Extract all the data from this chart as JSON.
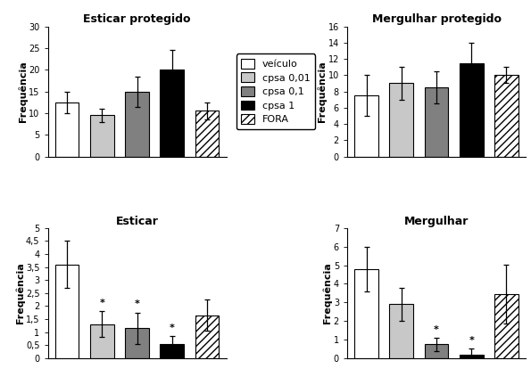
{
  "titles": [
    "Esticar protegido",
    "Mergulhar protegido",
    "Esticar",
    "Mergulhar"
  ],
  "ylabel": "Frequência",
  "bar_values": {
    "Esticar protegido": [
      12.5,
      9.5,
      15.0,
      20.0,
      10.5
    ],
    "Mergulhar protegido": [
      7.5,
      9.0,
      8.5,
      11.5,
      10.0
    ],
    "Esticar": [
      3.6,
      1.3,
      1.15,
      0.55,
      1.65
    ],
    "Mergulhar": [
      4.8,
      2.9,
      0.75,
      0.2,
      3.45
    ]
  },
  "bar_errors": {
    "Esticar protegido": [
      2.5,
      1.5,
      3.5,
      4.5,
      2.0
    ],
    "Mergulhar protegido": [
      2.5,
      2.0,
      2.0,
      2.5,
      1.0
    ],
    "Esticar": [
      0.9,
      0.5,
      0.6,
      0.3,
      0.6
    ],
    "Mergulhar": [
      1.2,
      0.9,
      0.35,
      0.3,
      1.6
    ]
  },
  "significance": {
    "Esticar protegido": [
      false,
      false,
      false,
      false,
      false
    ],
    "Mergulhar protegido": [
      false,
      false,
      false,
      false,
      false
    ],
    "Esticar": [
      false,
      true,
      true,
      true,
      false
    ],
    "Mergulhar": [
      false,
      false,
      true,
      true,
      false
    ]
  },
  "ylims": {
    "Esticar protegido": [
      0,
      30
    ],
    "Mergulhar protegido": [
      0,
      16
    ],
    "Esticar": [
      0,
      5
    ],
    "Mergulhar": [
      0,
      7
    ]
  },
  "yticks": {
    "Esticar protegido": [
      0,
      5,
      10,
      15,
      20,
      25,
      30
    ],
    "Mergulhar protegido": [
      0,
      2,
      4,
      6,
      8,
      10,
      12,
      14,
      16
    ],
    "Esticar": [
      0,
      0.5,
      1.0,
      1.5,
      2.0,
      2.5,
      3.0,
      3.5,
      4.0,
      4.5,
      5.0
    ],
    "Mergulhar": [
      0,
      1,
      2,
      3,
      4,
      5,
      6,
      7
    ]
  },
  "bar_colors": [
    "white",
    "#c8c8c8",
    "#808080",
    "black",
    "white"
  ],
  "bar_edgecolors": [
    "black",
    "black",
    "black",
    "black",
    "black"
  ],
  "legend_labels": [
    "veículo",
    "cpsa 0,01",
    "cpsa 0,1",
    "cpsa 1",
    "FORA"
  ],
  "hatch_patterns": [
    "",
    "",
    "",
    "",
    "////"
  ],
  "ytick_labels": {
    "Esticar protegido": [
      "0",
      "5",
      "10",
      "15",
      "20",
      "25",
      "30"
    ],
    "Mergulhar protegido": [
      "0",
      "2",
      "4",
      "6",
      "8",
      "10",
      "12",
      "14",
      "16"
    ],
    "Esticar": [
      "0",
      "0,5",
      "1",
      "1,5",
      "2",
      "2,5",
      "3",
      "3,5",
      "4",
      "4,5",
      "5"
    ],
    "Mergulhar": [
      "0",
      "1",
      "2",
      "3",
      "4",
      "5",
      "6",
      "7"
    ]
  }
}
